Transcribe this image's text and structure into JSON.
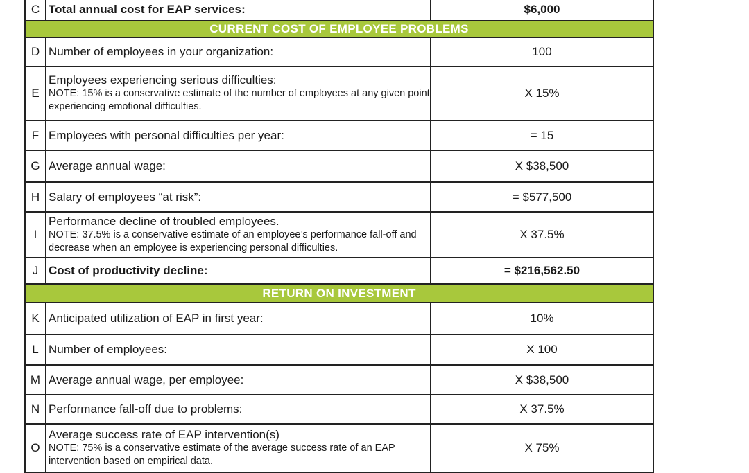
{
  "table": {
    "rows": [
      {
        "letter": "C",
        "label": "Total annual cost for EAP services:",
        "value": "$6,000",
        "bold": true
      },
      {
        "section": "CURRENT COST OF EMPLOYEE PROBLEMS"
      },
      {
        "letter": "D",
        "label": "Number of employees in your organization:",
        "value": "100"
      },
      {
        "letter": "E",
        "label": "Employees experiencing serious difficulties:",
        "note": "NOTE: 15% is a conservative estimate of the number of employees at any given point experiencing emotional difficulties.",
        "value": "X 15%"
      },
      {
        "letter": "F",
        "label": "Employees with personal difficulties per year:",
        "value": "= 15"
      },
      {
        "letter": "G",
        "label": "Average annual wage:",
        "value": "X $38,500"
      },
      {
        "letter": "H",
        "label": "Salary of employees “at risk”:",
        "value": "= $577,500"
      },
      {
        "letter": "I",
        "label": "Performance decline of troubled employees.",
        "note": "NOTE: 37.5% is a conservative estimate of an employee’s performance fall-off and decrease when an employee is experiencing personal difficulties.",
        "value": "X 37.5%"
      },
      {
        "letter": "J",
        "label": "Cost of productivity decline:",
        "value": "= $216,562.50",
        "bold": true
      },
      {
        "section": "RETURN ON INVESTMENT"
      },
      {
        "letter": "K",
        "label": "Anticipated utilization of EAP in first year:",
        "value": "10%"
      },
      {
        "letter": "L",
        "label": "Number of employees:",
        "value": "X 100"
      },
      {
        "letter": "M",
        "label": "Average annual wage, per employee:",
        "value": "X $38,500"
      },
      {
        "letter": "N",
        "label": "Performance fall-off due to problems:",
        "value": "X 37.5%"
      },
      {
        "letter": "O",
        "label": "Average success rate of EAP intervention(s)",
        "note": "NOTE: 75% is a conservative estimate of the average success rate of an EAP intervention based on empirical data.",
        "value": "X 75%"
      }
    ]
  }
}
